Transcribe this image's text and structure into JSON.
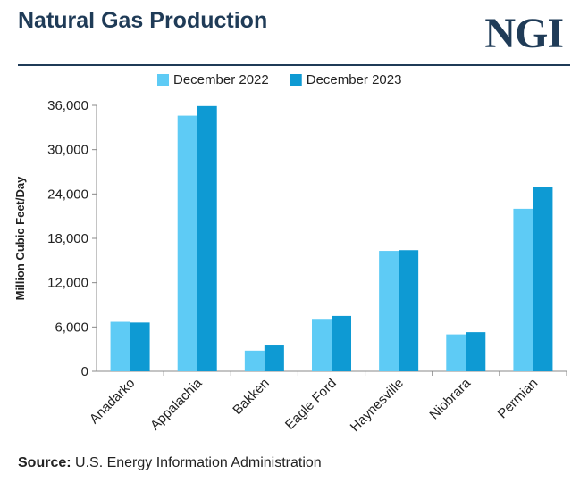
{
  "header": {
    "title": "Natural Gas Production",
    "logo_text": "NGI"
  },
  "footer": {
    "source_label": "Source:",
    "source_text": " U.S. Energy Information Administration"
  },
  "colors": {
    "title": "#1f3b57",
    "series_2022": "#5ecbf5",
    "series_2023": "#0e9ad3",
    "axis": "#888888",
    "text": "#222222"
  },
  "chart_data": {
    "type": "bar",
    "title": "",
    "xlabel": "",
    "ylabel": "Million Cubic Feet/Day",
    "ylim": [
      0,
      36000
    ],
    "yticks": [
      "0",
      "6,000",
      "12,000",
      "18,000",
      "24,000",
      "30,000",
      "36,000"
    ],
    "ytick_values": [
      0,
      6000,
      12000,
      18000,
      24000,
      30000,
      36000
    ],
    "grid": false,
    "legend_position": "top",
    "categories": [
      "Anadarko",
      "Appalachia",
      "Bakken",
      "Eagle Ford",
      "Haynesville",
      "Niobrara",
      "Permian"
    ],
    "series": [
      {
        "name": "December 2022",
        "color": "#5ecbf5",
        "values": [
          6700,
          34600,
          2800,
          7100,
          16300,
          5000,
          22000
        ]
      },
      {
        "name": "December 2023",
        "color": "#0e9ad3",
        "values": [
          6600,
          35900,
          3500,
          7500,
          16400,
          5300,
          25000
        ]
      }
    ]
  }
}
